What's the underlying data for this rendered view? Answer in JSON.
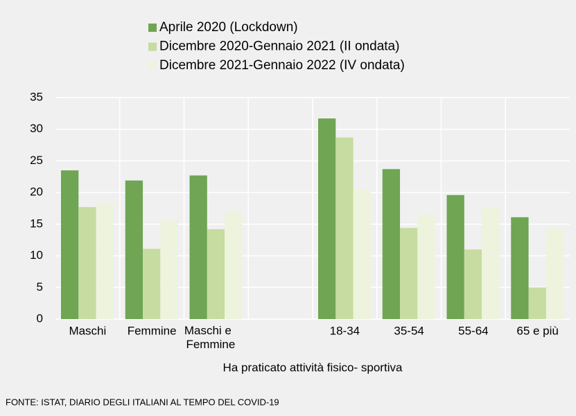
{
  "chart_data": {
    "type": "bar",
    "x_label": "Ha praticato attività fisico- sportiva",
    "source": "FONTE: ISTAT, DIARIO DEGLI ITALIANI AL TEMPO DEL COVID-19",
    "categories": [
      "Maschi",
      "Femmine",
      "Maschi e Femmine",
      null,
      "18-34",
      "35-54",
      "55-64",
      "65 e più"
    ],
    "series": [
      {
        "name": "Aprile 2020 (Lockdown)",
        "color": "#6fa553",
        "values": [
          23.5,
          21.9,
          22.7,
          null,
          31.7,
          23.7,
          19.6,
          16.1
        ]
      },
      {
        "name": "Dicembre 2020-Gennaio 2021 (II ondata)",
        "color": "#c6dca1",
        "values": [
          17.7,
          11.1,
          14.2,
          null,
          28.7,
          14.4,
          11.0,
          5.0
        ]
      },
      {
        "name": "Dicembre 2021-Gennaio 2022 (IV ondata)",
        "color": "#eef3dd",
        "values": [
          18.4,
          15.6,
          16.9,
          null,
          20.5,
          16.5,
          17.6,
          14.4
        ]
      }
    ],
    "ylim": [
      0,
      35
    ],
    "yticks": [
      0,
      5,
      10,
      15,
      20,
      25,
      30,
      35
    ],
    "grid": true
  }
}
